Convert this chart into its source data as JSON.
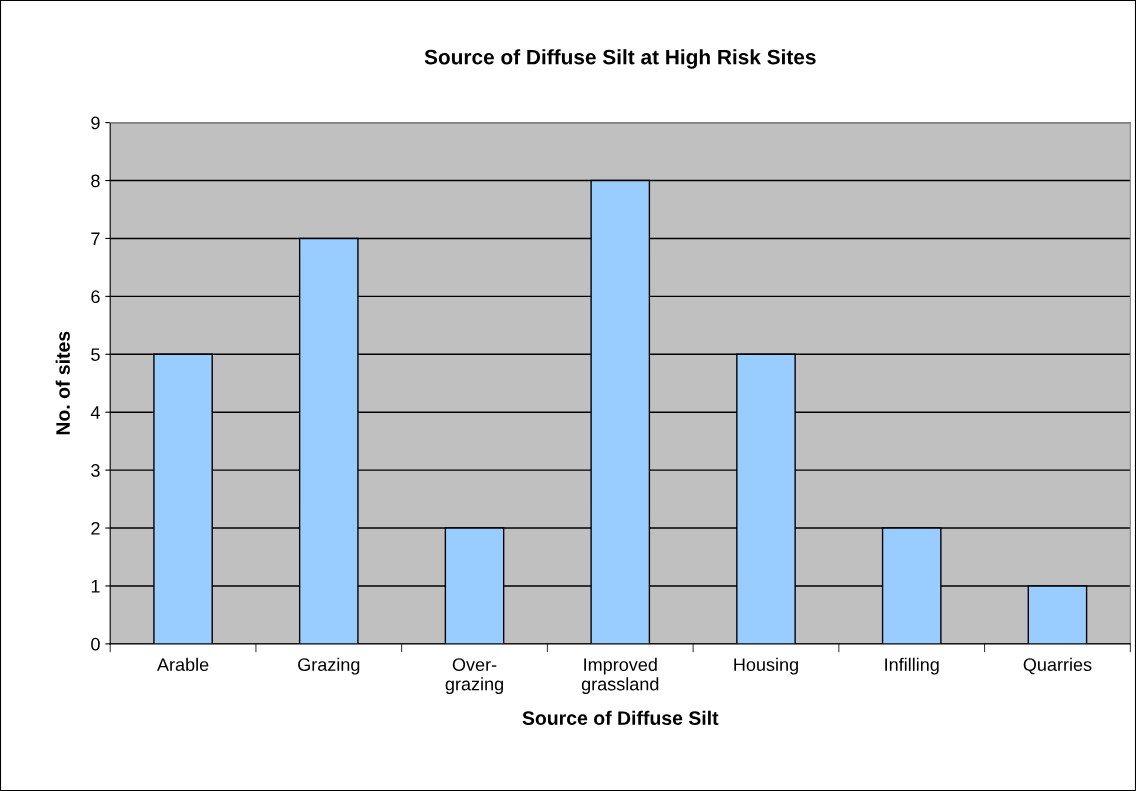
{
  "chart_data": {
    "type": "bar",
    "title": "Source of Diffuse Silt at High Risk Sites",
    "xlabel": "Source of Diffuse Silt",
    "ylabel": "No. of sites",
    "categories": [
      "Arable",
      "Grazing",
      "Over-\ngrazing",
      "Improved\ngrassland",
      "Housing",
      "Infilling",
      "Quarries"
    ],
    "values": [
      5,
      7,
      2,
      8,
      5,
      2,
      1
    ],
    "color": "#99ccff",
    "ylim": [
      0,
      9
    ],
    "yticks": [
      0,
      1,
      2,
      3,
      4,
      5,
      6,
      7,
      8,
      9
    ],
    "grid": "y",
    "legend": false
  }
}
